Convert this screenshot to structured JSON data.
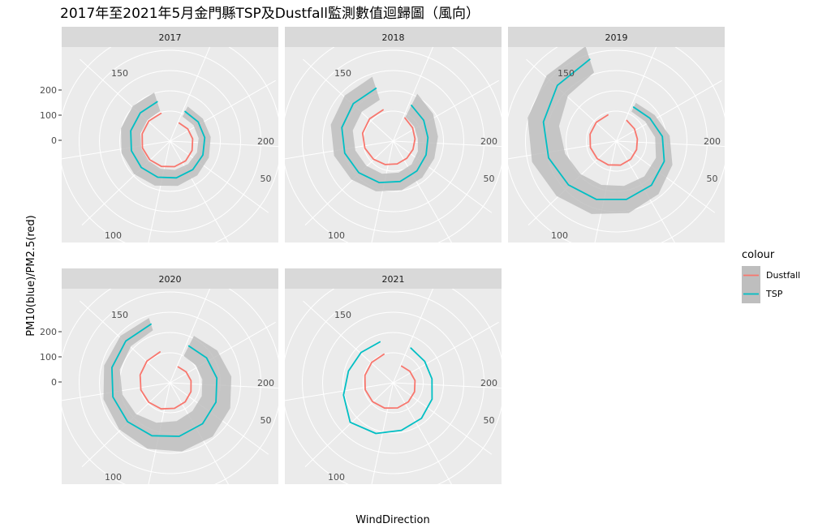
{
  "chart_data": {
    "type": "line",
    "projection": "polar",
    "title": "2017年至2021年5月金門縣TSP及Dustfall監測數值迴歸圖（風向）",
    "xlabel": "WindDirection",
    "ylabel": "PM10(blue)/PM2.5(red)",
    "y_ticks": [
      "200",
      "100",
      "0"
    ],
    "theta_tick_labels": [
      "150",
      "200",
      "50",
      "100"
    ],
    "legend": {
      "title": "colour",
      "position": "right",
      "entries": [
        {
          "name": "Dustfall",
          "color": "#F8766D"
        },
        {
          "name": "TSP",
          "color": "#00BFC4"
        }
      ]
    },
    "ribbon_color": "#BEBEBE",
    "panels": [
      {
        "year": "2017",
        "series": [
          {
            "name": "TSP",
            "r": [
              58,
              60,
              62,
              64,
              66,
              68,
              70,
              72,
              74,
              76,
              77,
              78
            ],
            "band": [
              14,
              14,
              15,
              16,
              18,
              20,
              22,
              24,
              25,
              25,
              25,
              24
            ]
          },
          {
            "name": "Dustfall",
            "r": [
              26,
              29,
              32,
              35,
              38,
              40,
              42,
              44,
              46,
              47,
              48,
              48
            ],
            "band": [
              0,
              0,
              0,
              0,
              0,
              0,
              0,
              0,
              0,
              0,
              0,
              0
            ]
          }
        ]
      },
      {
        "year": "2018",
        "series": [
          {
            "name": "TSP",
            "r": [
              75,
              67,
              62,
              64,
              70,
              77,
              84,
              91,
              99,
              107,
              111,
              113
            ],
            "band": [
              32,
              28,
              25,
              22,
              21,
              22,
              23,
              25,
              27,
              28,
              29,
              30
            ]
          },
          {
            "name": "Dustfall",
            "r": [
              40,
              34,
              30,
              29,
              30,
              33,
              37,
              42,
              48,
              54,
              56,
              57
            ],
            "band": [
              0,
              0,
              0,
              0,
              0,
              0,
              0,
              0,
              0,
              0,
              0,
              0
            ]
          }
        ]
      },
      {
        "year": "2019",
        "series": [
          {
            "name": "TSP",
            "r": [
              70,
              76,
              90,
              104,
              115,
              122,
              128,
              136,
              148,
              162,
              176,
              188
            ],
            "band": [
              12,
              14,
              18,
              22,
              28,
              34,
              38,
              40,
              42,
              40,
              36,
              34
            ]
          },
          {
            "name": "Dustfall",
            "r": [
              33,
              30,
              28,
              30,
              33,
              36,
              38,
              40,
              42,
              43,
              44,
              44
            ],
            "band": [
              0,
              0,
              0,
              0,
              0,
              0,
              0,
              0,
              0,
              0,
              0,
              0
            ]
          }
        ]
      },
      {
        "year": "2020",
        "series": [
          {
            "name": "TSP",
            "r": [
              78,
              85,
              92,
              99,
              105,
              110,
              114,
              118,
              121,
              124,
              126,
              128
            ],
            "band": [
              28,
              32,
              36,
              38,
              40,
              38,
              34,
              28,
              24,
              20,
              18,
              16
            ]
          },
          {
            "name": "Dustfall",
            "r": [
              20,
              24,
              28,
              32,
              36,
              40,
              44,
              47,
              50,
              52,
              54,
              56
            ],
            "band": [
              0,
              0,
              0,
              0,
              0,
              0,
              0,
              0,
              0,
              0,
              0,
              0
            ]
          }
        ]
      },
      {
        "year": "2021",
        "series": [
          {
            "name": "TSP",
            "r": [
              72,
              70,
              72,
              80,
              88,
              95,
              108,
              120,
              102,
              90,
              85,
              82
            ],
            "band": [
              0,
              0,
              0,
              0,
              0,
              0,
              0,
              0,
              0,
              0,
              0,
              0
            ]
          },
          {
            "name": "Dustfall",
            "r": [
              22,
              26,
              30,
              33,
              36,
              39,
              42,
              45,
              47,
              48,
              49,
              50
            ],
            "band": [
              0,
              0,
              0,
              0,
              0,
              0,
              0,
              0,
              0,
              0,
              0,
              0
            ]
          }
        ]
      }
    ]
  }
}
